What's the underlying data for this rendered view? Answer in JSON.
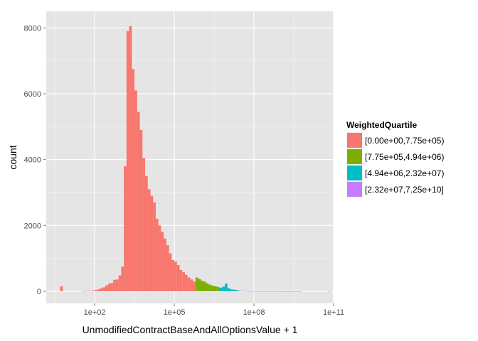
{
  "chart_data": {
    "type": "bar",
    "xlabel": "UnmodifiedContractBaseAndAllOptionsValue + 1",
    "ylabel": "count",
    "x_scale": "log10",
    "xlim": [
      1.5,
      100000000000.0
    ],
    "ylim": [
      0,
      8200
    ],
    "x_ticks": [
      {
        "value": 100,
        "label": "1e+02"
      },
      {
        "value": 100000,
        "label": "1e+05"
      },
      {
        "value": 100000000,
        "label": "1e+08"
      },
      {
        "value": 100000000000,
        "label": "1e+11"
      }
    ],
    "y_ticks": [
      {
        "value": 0,
        "label": "0"
      },
      {
        "value": 2000,
        "label": "2000"
      },
      {
        "value": 4000,
        "label": "4000"
      },
      {
        "value": 6000,
        "label": "6000"
      },
      {
        "value": 8000,
        "label": "8000"
      }
    ],
    "grid": true,
    "legend": {
      "title": "WeightedQuartile",
      "position": "right",
      "entries": [
        {
          "label": "[0.00e+00,7.75e+05)",
          "color": "#F8766D"
        },
        {
          "label": "[7.75e+05,4.94e+06)",
          "color": "#7CAE00"
        },
        {
          "label": "[4.94e+06,2.32e+07)",
          "color": "#00BFC4"
        },
        {
          "label": "[2.32e+07,7.25e+10]",
          "color": "#C77CFF"
        }
      ]
    },
    "bin_width_log10": 0.1,
    "series": [
      {
        "name": "[0.00e+00,7.75e+05)",
        "color": "#F8766D",
        "bins": [
          [
            0.7,
            0.8,
            150
          ],
          [
            1.5,
            1.6,
            5
          ],
          [
            1.6,
            1.7,
            5
          ],
          [
            1.7,
            1.8,
            10
          ],
          [
            1.8,
            1.9,
            15
          ],
          [
            1.9,
            2.0,
            20
          ],
          [
            2.0,
            2.1,
            40
          ],
          [
            2.1,
            2.2,
            60
          ],
          [
            2.2,
            2.3,
            90
          ],
          [
            2.3,
            2.4,
            120
          ],
          [
            2.4,
            2.5,
            180
          ],
          [
            2.5,
            2.6,
            230
          ],
          [
            2.6,
            2.7,
            250
          ],
          [
            2.7,
            2.8,
            350
          ],
          [
            2.8,
            2.9,
            360
          ],
          [
            2.9,
            3.0,
            480
          ],
          [
            3.0,
            3.1,
            750
          ],
          [
            3.1,
            3.2,
            3800
          ],
          [
            3.2,
            3.3,
            7900
          ],
          [
            3.3,
            3.4,
            8050
          ],
          [
            3.4,
            3.5,
            6750
          ],
          [
            3.5,
            3.6,
            6100
          ],
          [
            3.6,
            3.7,
            5450
          ],
          [
            3.7,
            3.8,
            4900
          ],
          [
            3.8,
            3.9,
            4050
          ],
          [
            3.9,
            4.0,
            3500
          ],
          [
            4.0,
            4.1,
            3100
          ],
          [
            4.1,
            4.2,
            2900
          ],
          [
            4.2,
            4.3,
            2700
          ],
          [
            4.3,
            4.4,
            2200
          ],
          [
            4.4,
            4.5,
            2000
          ],
          [
            4.5,
            4.6,
            1800
          ],
          [
            4.6,
            4.7,
            1600
          ],
          [
            4.7,
            4.8,
            1400
          ],
          [
            4.8,
            4.9,
            1150
          ],
          [
            4.9,
            5.0,
            950
          ],
          [
            5.0,
            5.1,
            900
          ],
          [
            5.1,
            5.2,
            800
          ],
          [
            5.2,
            5.3,
            650
          ],
          [
            5.3,
            5.4,
            580
          ],
          [
            5.4,
            5.5,
            500
          ],
          [
            5.5,
            5.6,
            420
          ],
          [
            5.6,
            5.7,
            360
          ],
          [
            5.7,
            5.8,
            300
          ]
        ]
      },
      {
        "name": "[7.75e+05,4.94e+06)",
        "color": "#7CAE00",
        "bins": [
          [
            5.8,
            5.9,
            420
          ],
          [
            5.9,
            6.0,
            370
          ],
          [
            6.0,
            6.1,
            320
          ],
          [
            6.1,
            6.2,
            290
          ],
          [
            6.2,
            6.3,
            240
          ],
          [
            6.3,
            6.4,
            200
          ],
          [
            6.4,
            6.5,
            170
          ],
          [
            6.5,
            6.6,
            150
          ],
          [
            6.6,
            6.7,
            130
          ]
        ]
      },
      {
        "name": "[4.94e+06,2.32e+07)",
        "color": "#00BFC4",
        "bins": [
          [
            6.7,
            6.8,
            110
          ],
          [
            6.8,
            6.9,
            140
          ],
          [
            6.9,
            7.0,
            230
          ],
          [
            7.0,
            7.1,
            90
          ],
          [
            7.1,
            7.2,
            60
          ],
          [
            7.2,
            7.3,
            50
          ],
          [
            7.3,
            7.4,
            40
          ]
        ]
      },
      {
        "name": "[2.32e+07,7.25e+10]",
        "color": "#C77CFF",
        "bins": [
          [
            7.4,
            7.5,
            25
          ],
          [
            7.5,
            7.6,
            15
          ],
          [
            7.6,
            7.7,
            8
          ],
          [
            7.7,
            7.8,
            5
          ],
          [
            7.8,
            8.0,
            3
          ],
          [
            8.0,
            8.5,
            2
          ],
          [
            8.5,
            9.0,
            2
          ],
          [
            9.0,
            9.8,
            1
          ],
          [
            10.8,
            10.9,
            1
          ]
        ]
      }
    ]
  }
}
